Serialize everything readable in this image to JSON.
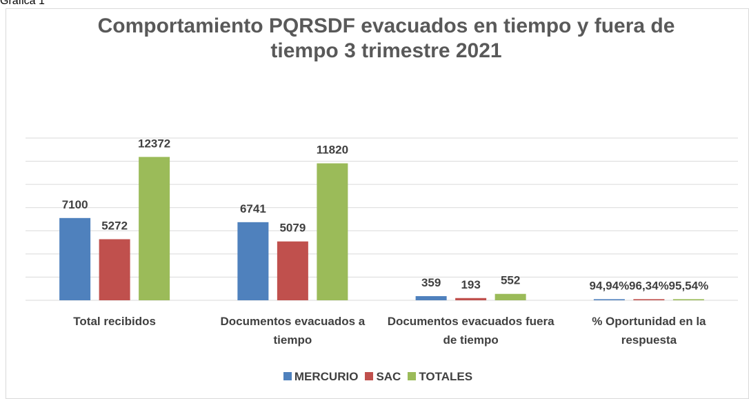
{
  "caption": "Gráfica 1",
  "chart_data": {
    "type": "bar",
    "title": "Comportamiento PQRSDF evacuados en tiempo y fuera de tiempo 3 trimestre 2021",
    "categories": [
      "Total recibidos",
      "Documentos evacuados a tiempo",
      "Documentos evacuados fuera de tiempo",
      "% Oportunidad en la respuesta"
    ],
    "series": [
      {
        "name": "MERCURIO",
        "color": "#4f81bd",
        "values": [
          7100,
          6741,
          359,
          94.94
        ],
        "value_labels": [
          "7100",
          "6741",
          "359",
          "94,94%"
        ]
      },
      {
        "name": "SAC",
        "color": "#c0504d",
        "values": [
          5272,
          5079,
          193,
          96.34
        ],
        "value_labels": [
          "5272",
          "5079",
          "193",
          "96,34%"
        ]
      },
      {
        "name": "TOTALES",
        "color": "#9bbb59",
        "values": [
          12372,
          11820,
          552,
          95.54
        ],
        "value_labels": [
          "12372",
          "11820",
          "552",
          "95,54%"
        ]
      }
    ],
    "ylim": [
      0,
      14000
    ],
    "yticks": [
      0,
      2000,
      4000,
      6000,
      8000,
      10000,
      12000,
      14000
    ],
    "grid": true,
    "legend": "bottom"
  }
}
